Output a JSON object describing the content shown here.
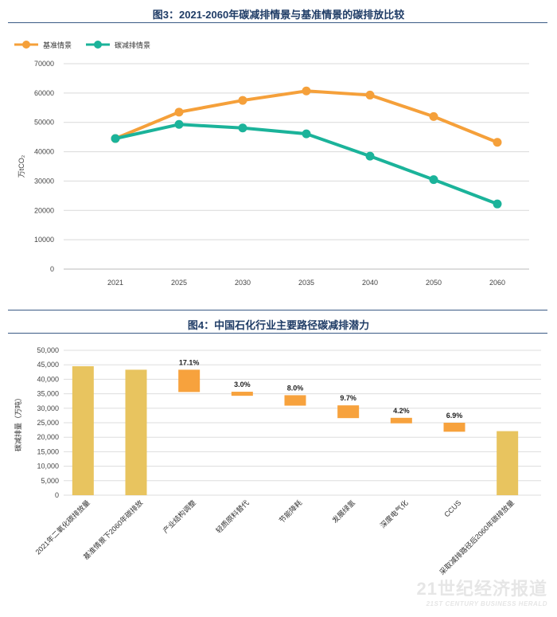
{
  "chart_data": [
    {
      "type": "line",
      "title": "图3：2021-2060年碳减排情景与基准情景的碳排放比较",
      "ylabel": "万tCO₂",
      "ylim": [
        0,
        70000
      ],
      "yticks": [
        "0",
        "10000",
        "20000",
        "30000",
        "40000",
        "50000",
        "60000",
        "70000"
      ],
      "categories": [
        "2021",
        "2025",
        "2030",
        "2035",
        "2040",
        "2050",
        "2060"
      ],
      "grid": true,
      "legend_position": "top-left",
      "series": [
        {
          "name": "基准情景",
          "color": "#f5a03a",
          "values": [
            44500,
            53500,
            57500,
            60700,
            59300,
            52000,
            43200
          ]
        },
        {
          "name": "碳减排情景",
          "color": "#1bb39a",
          "values": [
            44500,
            49300,
            48100,
            46100,
            38500,
            30500,
            22200
          ]
        }
      ]
    },
    {
      "type": "bar",
      "subtype": "waterfall",
      "title": "图4：中国石化行业主要路径碳减排潜力",
      "ylabel": "碳减排量（万吨）",
      "ylim": [
        0,
        50000
      ],
      "yticks": [
        "0",
        "5,000",
        "10,000",
        "15,000",
        "20,000",
        "25,000",
        "30,000",
        "35,000",
        "40,000",
        "45,000",
        "50,000"
      ],
      "grid": true,
      "bar_color_total": "#e8c45f",
      "bar_color_step": "#f7a23d",
      "categories": [
        "2021年二氧化碳排放量",
        "基准情景下2060年碳排放",
        "产业结构调整",
        "轻质原料替代",
        "节能降耗",
        "发展绿氢",
        "深度电气化",
        "CCUS",
        "采取减排路径后2060年碳排放量"
      ],
      "bars": [
        {
          "kind": "total",
          "low": 0,
          "high": 44500,
          "label": ""
        },
        {
          "kind": "total",
          "low": 0,
          "high": 43300,
          "label": ""
        },
        {
          "kind": "step",
          "low": 35600,
          "high": 43300,
          "label": "17.1%"
        },
        {
          "kind": "step",
          "low": 34300,
          "high": 35700,
          "label": "3.0%"
        },
        {
          "kind": "step",
          "low": 30900,
          "high": 34500,
          "label": "8.0%"
        },
        {
          "kind": "step",
          "low": 26600,
          "high": 31000,
          "label": "9.7%"
        },
        {
          "kind": "step",
          "low": 24800,
          "high": 26700,
          "label": "4.2%"
        },
        {
          "kind": "step",
          "low": 21900,
          "high": 25000,
          "label": "6.9%"
        },
        {
          "kind": "total",
          "low": 0,
          "high": 22100,
          "label": ""
        }
      ]
    }
  ],
  "watermark": {
    "main": "21世纪经济报道",
    "sub": "21ST CENTURY BUSINESS HERALD"
  }
}
